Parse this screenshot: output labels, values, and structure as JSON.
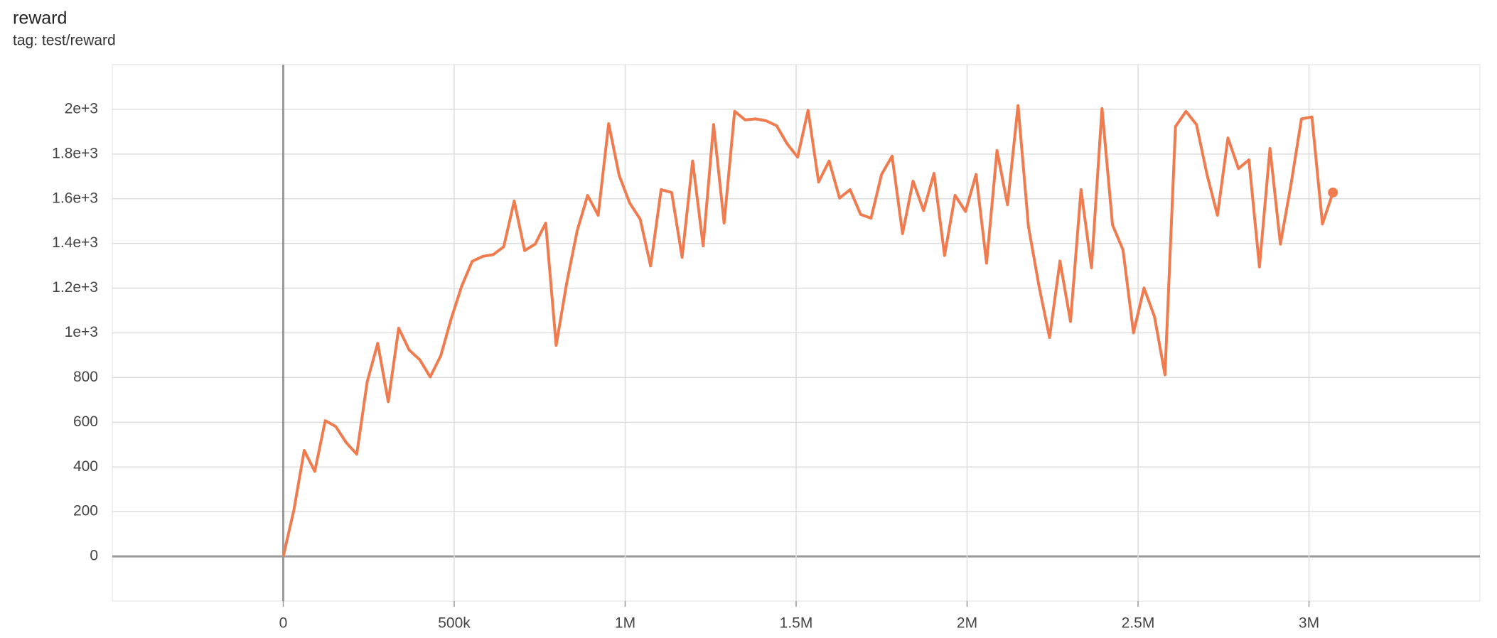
{
  "chart_data": {
    "type": "line",
    "title": "reward",
    "subtitle": "tag: test/reward",
    "x": [
      0,
      30700,
      61400,
      92100,
      122800,
      153500,
      184200,
      214900,
      245600,
      276300,
      307000,
      337700,
      368400,
      399100,
      429800,
      460500,
      491200,
      521900,
      552600,
      583300,
      614000,
      644700,
      675400,
      706100,
      736800,
      767500,
      798200,
      828900,
      859600,
      890300,
      921000,
      951700,
      982400,
      1013100,
      1043800,
      1074500,
      1105200,
      1135900,
      1166600,
      1197300,
      1228000,
      1258700,
      1289400,
      1320100,
      1350800,
      1381500,
      1412200,
      1442900,
      1473600,
      1504300,
      1535000,
      1565700,
      1596400,
      1627100,
      1657800,
      1688500,
      1719200,
      1749900,
      1780600,
      1811300,
      1842000,
      1872700,
      1903400,
      1934100,
      1964800,
      1995500,
      2026200,
      2056900,
      2087600,
      2118300,
      2149000,
      2179700,
      2210400,
      2241100,
      2271800,
      2302500,
      2333200,
      2363900,
      2394600,
      2425300,
      2456000,
      2486700,
      2517400,
      2548100,
      2578800,
      2609500,
      2640200,
      2670900,
      2701600,
      2732300,
      2763000,
      2793700,
      2824400,
      2855100,
      2885800,
      2916500,
      2947200,
      2977900,
      3008600,
      3039300,
      3070000
    ],
    "values": [
      0,
      205,
      474,
      380,
      607,
      581,
      509,
      457,
      782,
      953,
      692,
      1021,
      923,
      880,
      803,
      897,
      1064,
      1209,
      1320,
      1342,
      1350,
      1385,
      1590,
      1368,
      1397,
      1491,
      944,
      1222,
      1457,
      1615,
      1526,
      1936,
      1705,
      1581,
      1509,
      1299,
      1641,
      1628,
      1338,
      1769,
      1389,
      1932,
      1491,
      1991,
      1953,
      1957,
      1949,
      1927,
      1846,
      1786,
      1996,
      1675,
      1769,
      1603,
      1641,
      1530,
      1513,
      1709,
      1791,
      1444,
      1679,
      1547,
      1714,
      1346,
      1615,
      1543,
      1709,
      1312,
      1816,
      1573,
      2017,
      1474,
      1209,
      979,
      1321,
      1051,
      1641,
      1291,
      2004,
      1483,
      1372,
      1000,
      1201,
      1073,
      812,
      1923,
      1991,
      1932,
      1709,
      1526,
      1872,
      1735,
      1774,
      1295,
      1825,
      1397,
      1662,
      1957,
      1966,
      1487,
      1628
    ],
    "color": "#ef7b4f",
    "xlim": [
      -500000,
      3500000
    ],
    "xticks": [
      0,
      {
        "value": 500000,
        "label": "500k"
      },
      {
        "value": 1000000,
        "label": "1M"
      },
      {
        "value": 1500000,
        "label": "1.5M"
      },
      {
        "value": 2000000,
        "label": "2M"
      },
      {
        "value": 2500000,
        "label": "2.5M"
      },
      {
        "value": 3000000,
        "label": "3M"
      }
    ],
    "ylim": [
      -200,
      2200
    ],
    "yticks": [
      0,
      200,
      400,
      600,
      800,
      {
        "value": 1000,
        "label": "1e+3"
      },
      {
        "value": 1200,
        "label": "1.2e+3"
      },
      {
        "value": 1400,
        "label": "1.4e+3"
      },
      {
        "value": 1600,
        "label": "1.6e+3"
      },
      {
        "value": 1800,
        "label": "1.8e+3"
      },
      {
        "value": 2000,
        "label": "2e+3"
      }
    ],
    "grid": true
  }
}
